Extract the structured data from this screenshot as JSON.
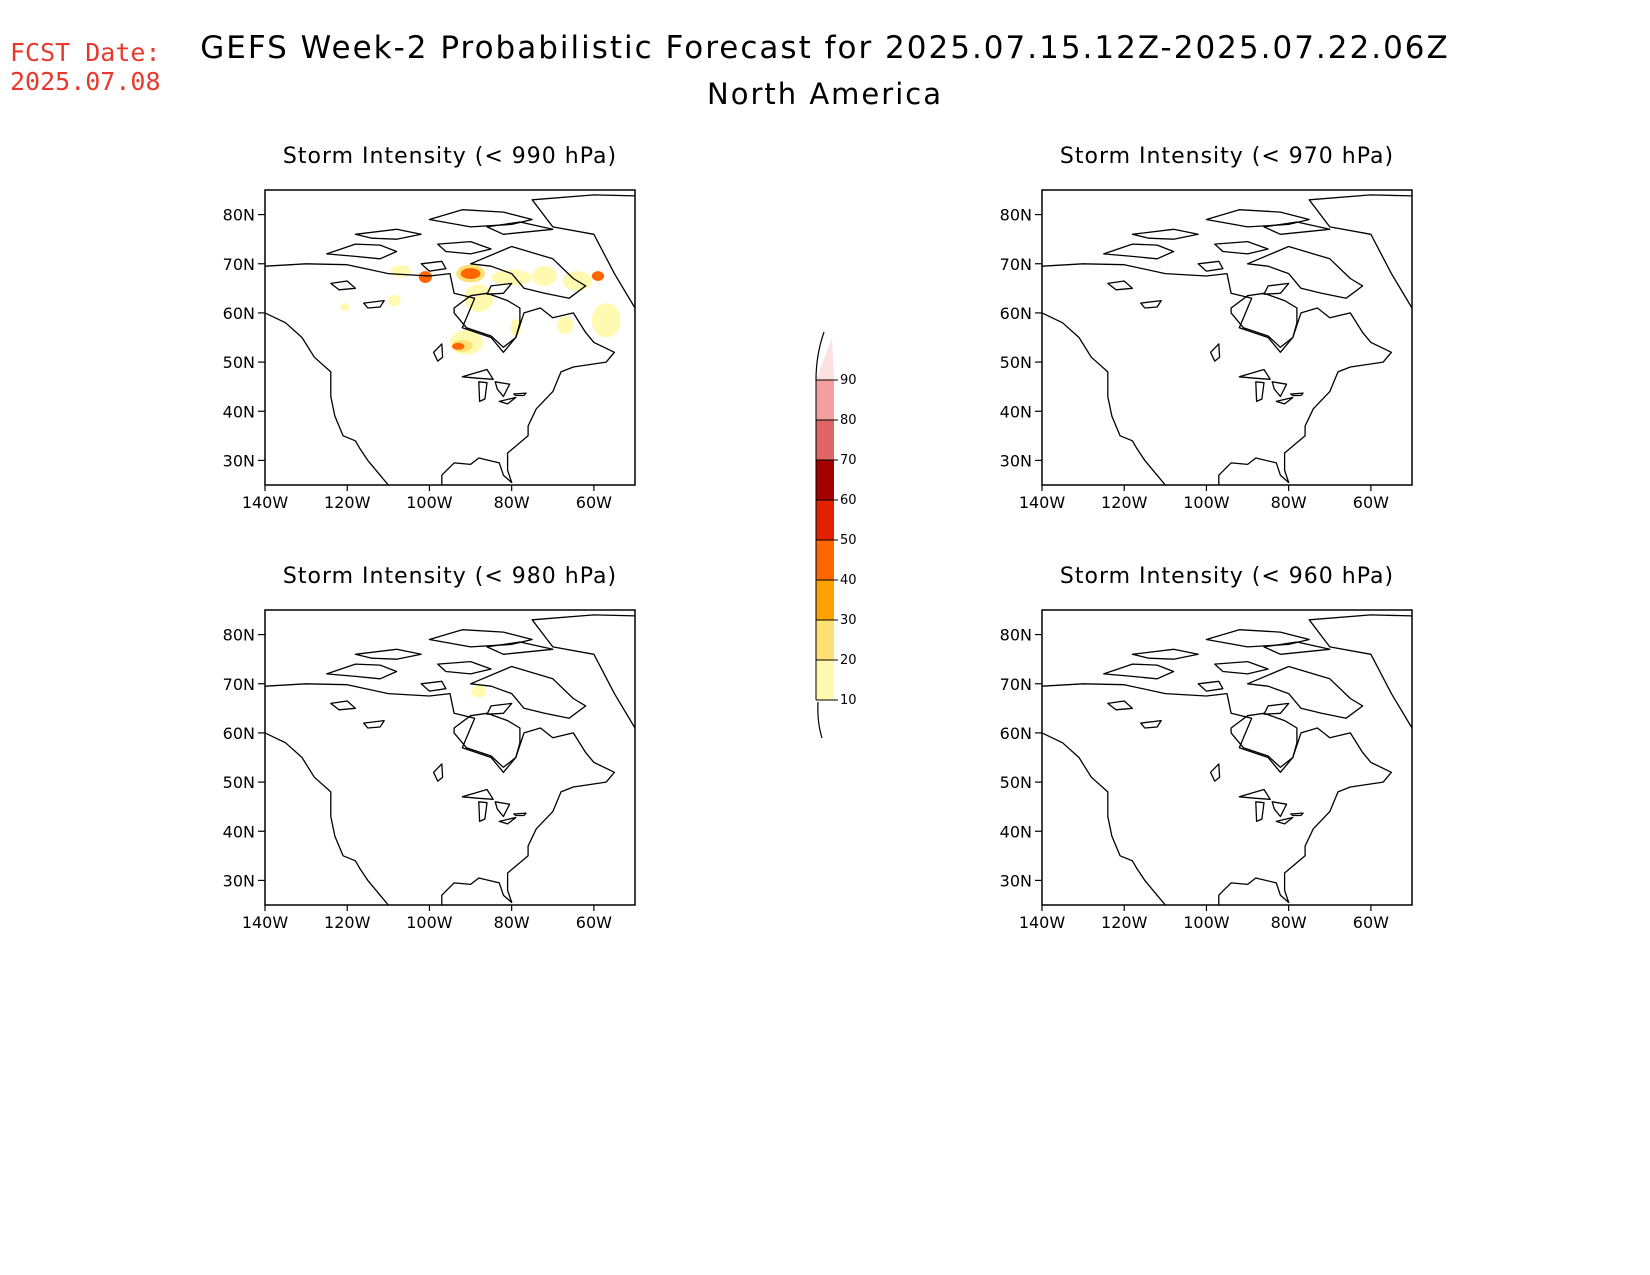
{
  "fcst_date": {
    "label": "FCST Date:",
    "value": "2025.07.08"
  },
  "header": {
    "title": "GEFS Week-2 Probabilistic Forecast for 2025.07.15.12Z-2025.07.22.06Z",
    "subtitle": "North America"
  },
  "axes": {
    "lat_ticks": [
      {
        "value": 80,
        "label": "80N"
      },
      {
        "value": 70,
        "label": "70N"
      },
      {
        "value": 60,
        "label": "60N"
      },
      {
        "value": 50,
        "label": "50N"
      },
      {
        "value": 40,
        "label": "40N"
      },
      {
        "value": 30,
        "label": "30N"
      }
    ],
    "lon_ticks": [
      {
        "value": -140,
        "label": "140W"
      },
      {
        "value": -120,
        "label": "120W"
      },
      {
        "value": -100,
        "label": "100W"
      },
      {
        "value": -80,
        "label": "80W"
      },
      {
        "value": -60,
        "label": "60W"
      }
    ],
    "lon_range": [
      -140,
      -50
    ],
    "lat_range": [
      25,
      85
    ]
  },
  "panels": [
    {
      "title": "Storm Intensity (< 990 hPa)",
      "blobs": [
        {
          "lon": -107,
          "lat": 68.5,
          "rlon": 2.5,
          "rlat": 1.2,
          "level": 10
        },
        {
          "lon": -101,
          "lat": 67.3,
          "rlon": 1.6,
          "rlat": 1.2,
          "level": 40
        },
        {
          "lon": -90,
          "lat": 68,
          "rlon": 3.5,
          "rlat": 1.8,
          "level": 20
        },
        {
          "lon": -90,
          "lat": 68,
          "rlon": 2.4,
          "rlat": 1.1,
          "level": 40
        },
        {
          "lon": -80,
          "lat": 67.2,
          "rlon": 5,
          "rlat": 1.6,
          "level": 10
        },
        {
          "lon": -72,
          "lat": 67.5,
          "rlon": 3,
          "rlat": 2,
          "level": 10
        },
        {
          "lon": -64,
          "lat": 66.5,
          "rlon": 3.5,
          "rlat": 2,
          "level": 10
        },
        {
          "lon": -59,
          "lat": 67.5,
          "rlon": 1.5,
          "rlat": 1,
          "level": 40
        },
        {
          "lon": -88,
          "lat": 63,
          "rlon": 3.5,
          "rlat": 2.8,
          "level": 10
        },
        {
          "lon": -108.5,
          "lat": 62.5,
          "rlon": 1.5,
          "rlat": 1.2,
          "level": 10
        },
        {
          "lon": -120.5,
          "lat": 61.2,
          "rlon": 1.2,
          "rlat": 0.8,
          "level": 10
        },
        {
          "lon": -91,
          "lat": 54,
          "rlon": 4,
          "rlat": 2.5,
          "level": 10
        },
        {
          "lon": -92,
          "lat": 53.3,
          "rlon": 2.5,
          "rlat": 1.2,
          "level": 20
        },
        {
          "lon": -93,
          "lat": 53.2,
          "rlon": 1.5,
          "rlat": 0.7,
          "level": 40
        },
        {
          "lon": -79,
          "lat": 57,
          "rlon": 1.3,
          "rlat": 1.8,
          "level": 10
        },
        {
          "lon": -67,
          "lat": 57.5,
          "rlon": 2,
          "rlat": 1.8,
          "level": 10
        },
        {
          "lon": -57,
          "lat": 58.5,
          "rlon": 3.5,
          "rlat": 3.5,
          "level": 10
        }
      ]
    },
    {
      "title": "Storm Intensity (< 970 hPa)",
      "blobs": []
    },
    {
      "title": "Storm Intensity (< 980 hPa)",
      "blobs": [
        {
          "lon": -88,
          "lat": 68.5,
          "rlon": 1.8,
          "rlat": 1.3,
          "level": 10
        }
      ]
    },
    {
      "title": "Storm Intensity (< 960 hPa)",
      "blobs": []
    }
  ],
  "colorbar": {
    "levels": [
      {
        "value": 10,
        "label": "10",
        "color": "#fffab0"
      },
      {
        "value": 20,
        "label": "20",
        "color": "#ffe073"
      },
      {
        "value": 30,
        "label": "30",
        "color": "#ffa200"
      },
      {
        "value": 40,
        "label": "40",
        "color": "#ff6600"
      },
      {
        "value": 50,
        "label": "50",
        "color": "#e22000"
      },
      {
        "value": 60,
        "label": "60",
        "color": "#a40000"
      },
      {
        "value": 70,
        "label": "70",
        "color": "#e06565"
      },
      {
        "value": 80,
        "label": "80",
        "color": "#f5a0a0"
      },
      {
        "value": 90,
        "label": "90",
        "color": "#fde0e0"
      }
    ]
  },
  "colors": {
    "fcst_text": "#e8392f",
    "coast": "#000000"
  }
}
